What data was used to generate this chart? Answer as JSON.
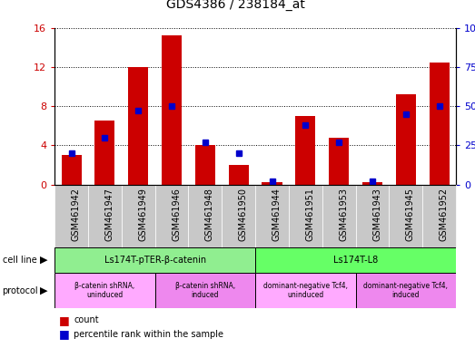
{
  "title": "GDS4386 / 238184_at",
  "samples": [
    "GSM461942",
    "GSM461947",
    "GSM461949",
    "GSM461946",
    "GSM461948",
    "GSM461950",
    "GSM461944",
    "GSM461951",
    "GSM461953",
    "GSM461943",
    "GSM461945",
    "GSM461952"
  ],
  "counts": [
    3.0,
    6.5,
    12.0,
    15.2,
    4.0,
    2.0,
    0.2,
    7.0,
    4.8,
    0.2,
    9.2,
    12.5
  ],
  "percentiles": [
    20,
    30,
    47,
    50,
    27,
    20,
    2,
    38,
    27,
    2,
    45,
    50
  ],
  "ylim_left": [
    0,
    16
  ],
  "ylim_right": [
    0,
    100
  ],
  "yticks_left": [
    0,
    4,
    8,
    12,
    16
  ],
  "yticks_right": [
    0,
    25,
    50,
    75,
    100
  ],
  "bar_color": "#cc0000",
  "dot_color": "#0000cc",
  "cell_line_groups": [
    {
      "label": "Ls174T-pTER-β-catenin",
      "span": 6,
      "color": "#90ee90"
    },
    {
      "label": "Ls174T-L8",
      "span": 6,
      "color": "#66ff66"
    }
  ],
  "protocol_groups": [
    {
      "label": "β-catenin shRNA,\nuninduced",
      "span": 3,
      "color": "#ffaaff"
    },
    {
      "label": "β-catenin shRNA,\ninduced",
      "span": 3,
      "color": "#ee88ee"
    },
    {
      "label": "dominant-negative Tcf4,\nuninduced",
      "span": 3,
      "color": "#ffaaff"
    },
    {
      "label": "dominant-negative Tcf4,\ninduced",
      "span": 3,
      "color": "#ee88ee"
    }
  ],
  "legend_count_label": "count",
  "legend_pct_label": "percentile rank within the sample",
  "cell_line_label": "cell line",
  "protocol_label": "protocol",
  "tick_label_bg": "#c8c8c8",
  "title_fontsize": 10,
  "axis_fontsize": 8,
  "tick_fontsize": 7,
  "table_fontsize": 7,
  "legend_fontsize": 7
}
